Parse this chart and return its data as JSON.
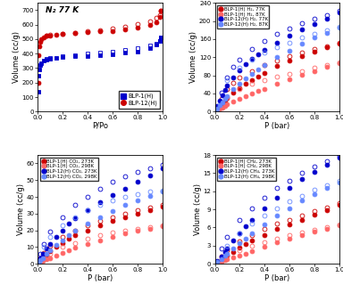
{
  "subplot1": {
    "title": "N₂ 77 K",
    "xlabel": "P/Po",
    "ylabel": "Volume (cc/g)",
    "ylim": [
      0,
      750
    ],
    "yticks": [
      0,
      100,
      200,
      300,
      400,
      500,
      600,
      700
    ],
    "xlim": [
      0,
      1.0
    ],
    "legend": [
      "BLP-1(H)",
      "BLP-12(H)"
    ],
    "blp1_ads_x": [
      0.003,
      0.007,
      0.01,
      0.02,
      0.03,
      0.05,
      0.07,
      0.1,
      0.15,
      0.2,
      0.3,
      0.4,
      0.5,
      0.6,
      0.7,
      0.8,
      0.9,
      0.95,
      0.98,
      0.99
    ],
    "blp1_ads_y": [
      135,
      250,
      290,
      320,
      335,
      350,
      360,
      365,
      370,
      375,
      380,
      385,
      390,
      395,
      405,
      415,
      440,
      460,
      490,
      510
    ],
    "blp1_des_x": [
      0.99,
      0.98,
      0.95,
      0.9,
      0.8,
      0.7,
      0.6,
      0.5,
      0.4,
      0.3,
      0.2,
      0.1,
      0.07
    ],
    "blp1_des_y": [
      510,
      490,
      470,
      455,
      440,
      425,
      415,
      408,
      402,
      392,
      383,
      373,
      365
    ],
    "blp12_ads_x": [
      0.003,
      0.007,
      0.01,
      0.02,
      0.03,
      0.05,
      0.07,
      0.1,
      0.15,
      0.2,
      0.3,
      0.4,
      0.5,
      0.6,
      0.7,
      0.8,
      0.9,
      0.95,
      0.98,
      0.99
    ],
    "blp12_ads_y": [
      200,
      390,
      450,
      480,
      500,
      515,
      522,
      527,
      532,
      537,
      542,
      547,
      552,
      558,
      568,
      580,
      598,
      618,
      655,
      695
    ],
    "blp12_des_x": [
      0.99,
      0.98,
      0.95,
      0.9,
      0.8,
      0.7,
      0.6,
      0.5,
      0.4,
      0.3,
      0.2,
      0.1,
      0.07
    ],
    "blp12_des_y": [
      695,
      668,
      645,
      625,
      605,
      588,
      572,
      562,
      552,
      542,
      536,
      530,
      526
    ]
  },
  "subplot2": {
    "xlabel": "P (bar)",
    "ylabel": "Volume (cc/g)",
    "ylim": [
      0,
      240
    ],
    "yticks": [
      0,
      40,
      80,
      120,
      160,
      200,
      240
    ],
    "xlim": [
      0,
      1.0
    ],
    "legend": [
      "BLP-1(H) H₂, 77K",
      "BLP-1(H) H₂, 87K",
      "BLP-12(H) H₂, 77K",
      "BLP-12(H) H₂, 87K"
    ],
    "blp1_77_ads_x": [
      0.01,
      0.02,
      0.04,
      0.06,
      0.08,
      0.1,
      0.15,
      0.2,
      0.25,
      0.3,
      0.35,
      0.4,
      0.5,
      0.6,
      0.7,
      0.8,
      0.9,
      1.0
    ],
    "blp1_77_ads_y": [
      3,
      6,
      12,
      18,
      24,
      30,
      42,
      52,
      62,
      70,
      78,
      86,
      100,
      112,
      123,
      133,
      142,
      150
    ],
    "blp1_77_des_x": [
      1.0,
      0.9,
      0.8,
      0.7,
      0.6,
      0.5,
      0.4,
      0.3,
      0.2,
      0.15,
      0.1,
      0.05
    ],
    "blp1_77_des_y": [
      152,
      145,
      138,
      130,
      122,
      113,
      103,
      90,
      75,
      64,
      50,
      28
    ],
    "blp1_87_ads_x": [
      0.01,
      0.02,
      0.04,
      0.06,
      0.08,
      0.1,
      0.15,
      0.2,
      0.25,
      0.3,
      0.35,
      0.4,
      0.5,
      0.6,
      0.7,
      0.8,
      0.9,
      1.0
    ],
    "blp1_87_ads_y": [
      1,
      3,
      6,
      9,
      12,
      16,
      22,
      28,
      34,
      40,
      45,
      50,
      62,
      72,
      82,
      90,
      98,
      106
    ],
    "blp1_87_des_x": [
      1.0,
      0.9,
      0.8,
      0.7,
      0.6,
      0.5,
      0.4,
      0.3,
      0.2,
      0.1
    ],
    "blp1_87_des_y": [
      108,
      102,
      96,
      90,
      84,
      77,
      70,
      61,
      50,
      33
    ],
    "blp12_77_ads_x": [
      0.01,
      0.02,
      0.04,
      0.06,
      0.08,
      0.1,
      0.15,
      0.2,
      0.25,
      0.3,
      0.35,
      0.4,
      0.5,
      0.6,
      0.7,
      0.8,
      0.9,
      1.0
    ],
    "blp12_77_ads_y": [
      5,
      12,
      24,
      36,
      48,
      58,
      76,
      92,
      105,
      116,
      126,
      136,
      152,
      168,
      182,
      194,
      206,
      218
    ],
    "blp12_77_des_x": [
      1.0,
      0.9,
      0.8,
      0.7,
      0.6,
      0.5,
      0.4,
      0.3,
      0.2,
      0.15,
      0.1,
      0.05
    ],
    "blp12_77_des_y": [
      222,
      214,
      206,
      196,
      184,
      171,
      156,
      138,
      114,
      98,
      76,
      42
    ],
    "blp12_87_ads_x": [
      0.01,
      0.02,
      0.04,
      0.06,
      0.08,
      0.1,
      0.15,
      0.2,
      0.25,
      0.3,
      0.35,
      0.4,
      0.5,
      0.6,
      0.7,
      0.8,
      0.9,
      1.0
    ],
    "blp12_87_ads_y": [
      3,
      7,
      14,
      21,
      28,
      35,
      50,
      62,
      74,
      84,
      94,
      102,
      120,
      135,
      150,
      163,
      174,
      185
    ],
    "blp12_87_des_x": [
      1.0,
      0.9,
      0.8,
      0.7,
      0.6,
      0.5,
      0.4,
      0.3,
      0.2,
      0.1
    ],
    "blp12_87_des_y": [
      188,
      180,
      172,
      163,
      153,
      142,
      130,
      115,
      96,
      70
    ]
  },
  "subplot3": {
    "xlabel": "P (bar)",
    "ylabel": "Volume (cc/g)",
    "ylim": [
      0,
      65
    ],
    "yticks": [
      0,
      10,
      20,
      30,
      40,
      50,
      60
    ],
    "xlim": [
      0,
      1.0
    ],
    "legend": [
      "BLP-1(H) CO₂, 273K",
      "BLP-1(H) CO₂, 298K",
      "BLP-12(H) CO₂, 273K",
      "BLP-12(H) CO₂, 298K"
    ],
    "blp1_273_ads_x": [
      0.01,
      0.02,
      0.04,
      0.07,
      0.1,
      0.15,
      0.2,
      0.25,
      0.3,
      0.4,
      0.5,
      0.6,
      0.7,
      0.8,
      0.9,
      1.0
    ],
    "blp1_273_ads_y": [
      1,
      2,
      3.5,
      5.5,
      7.5,
      10,
      12.5,
      15,
      17,
      20,
      23,
      25.5,
      28,
      30,
      32,
      34
    ],
    "blp1_273_des_x": [
      1.0,
      0.9,
      0.8,
      0.7,
      0.6,
      0.5,
      0.4,
      0.3,
      0.2,
      0.1,
      0.05,
      0.02
    ],
    "blp1_273_des_y": [
      35,
      33.5,
      32,
      30,
      28,
      25.5,
      23,
      20,
      16,
      10.5,
      6.5,
      3
    ],
    "blp1_298_ads_x": [
      0.01,
      0.02,
      0.04,
      0.07,
      0.1,
      0.15,
      0.2,
      0.25,
      0.3,
      0.4,
      0.5,
      0.6,
      0.7,
      0.8,
      0.9,
      1.0
    ],
    "blp1_298_ads_y": [
      0.3,
      0.8,
      1.5,
      2.5,
      3.5,
      5,
      6.5,
      8,
      9.5,
      12,
      14,
      16,
      18,
      19.5,
      21,
      22.5
    ],
    "blp1_298_des_x": [
      1.0,
      0.9,
      0.8,
      0.7,
      0.6,
      0.5,
      0.4,
      0.3,
      0.2,
      0.1,
      0.05
    ],
    "blp1_298_des_y": [
      23,
      22,
      21,
      20,
      18.5,
      17,
      15,
      12.5,
      10,
      6,
      3.5
    ],
    "blp12_273_ads_x": [
      0.01,
      0.02,
      0.04,
      0.07,
      0.1,
      0.15,
      0.2,
      0.25,
      0.3,
      0.4,
      0.5,
      0.6,
      0.7,
      0.8,
      0.9,
      1.0
    ],
    "blp12_273_ads_y": [
      2,
      3.5,
      6,
      9,
      12,
      16,
      20,
      24,
      27,
      32,
      37,
      41,
      45,
      49,
      53,
      57
    ],
    "blp12_273_des_x": [
      1.0,
      0.9,
      0.8,
      0.7,
      0.6,
      0.5,
      0.4,
      0.3,
      0.2,
      0.1,
      0.05,
      0.02
    ],
    "blp12_273_des_y": [
      59,
      57,
      55,
      52.5,
      49,
      45,
      40,
      35,
      28,
      19,
      12,
      6
    ],
    "blp12_298_ads_x": [
      0.01,
      0.02,
      0.04,
      0.07,
      0.1,
      0.15,
      0.2,
      0.25,
      0.3,
      0.4,
      0.5,
      0.6,
      0.7,
      0.8,
      0.9,
      1.0
    ],
    "blp12_298_ads_y": [
      1,
      2,
      3.5,
      6,
      8,
      11,
      14,
      17,
      19.5,
      24,
      28,
      31.5,
      35,
      38,
      40.5,
      43
    ],
    "blp12_298_des_x": [
      1.0,
      0.9,
      0.8,
      0.7,
      0.6,
      0.5,
      0.4,
      0.3,
      0.2,
      0.1,
      0.05
    ],
    "blp12_298_des_y": [
      44,
      43,
      41.5,
      40,
      38,
      35,
      32,
      28,
      23,
      16,
      10
    ]
  },
  "subplot4": {
    "xlabel": "P (bar)",
    "ylabel": "Volume (cc/g)",
    "ylim": [
      0,
      18
    ],
    "yticks": [
      0,
      3,
      6,
      9,
      12,
      15,
      18
    ],
    "xlim": [
      0,
      1.0
    ],
    "legend": [
      "BLP-1(H) CH₄, 273K",
      "BLP-1(H) CH₄, 298K",
      "BLP-12(H) CH₄, 273K",
      "BLP-12(H) CH₄, 298K"
    ],
    "blp1_273_ads_x": [
      0.01,
      0.02,
      0.05,
      0.08,
      0.1,
      0.15,
      0.2,
      0.25,
      0.3,
      0.4,
      0.5,
      0.6,
      0.7,
      0.8,
      0.9,
      1.0
    ],
    "blp1_273_ads_y": [
      0.1,
      0.3,
      0.7,
      1.1,
      1.4,
      2.0,
      2.6,
      3.2,
      3.8,
      4.8,
      5.7,
      6.5,
      7.3,
      8.1,
      8.9,
      9.8
    ],
    "blp1_273_des_x": [
      1.0,
      0.9,
      0.8,
      0.7,
      0.6,
      0.5,
      0.4,
      0.3,
      0.2,
      0.1,
      0.05
    ],
    "blp1_273_des_y": [
      10.0,
      9.3,
      8.7,
      8.0,
      7.3,
      6.6,
      5.8,
      4.8,
      3.7,
      2.3,
      1.2
    ],
    "blp1_298_ads_x": [
      0.01,
      0.02,
      0.05,
      0.08,
      0.1,
      0.15,
      0.2,
      0.25,
      0.3,
      0.4,
      0.5,
      0.6,
      0.7,
      0.8,
      0.9,
      1.0
    ],
    "blp1_298_ads_y": [
      0.05,
      0.15,
      0.35,
      0.55,
      0.7,
      1.0,
      1.4,
      1.7,
      2.1,
      2.8,
      3.5,
      4.1,
      4.7,
      5.3,
      5.8,
      6.4
    ],
    "blp1_298_des_x": [
      1.0,
      0.9,
      0.8,
      0.7,
      0.6,
      0.5,
      0.4,
      0.3,
      0.2,
      0.1
    ],
    "blp1_298_des_y": [
      6.5,
      6.0,
      5.6,
      5.2,
      4.7,
      4.2,
      3.6,
      3.0,
      2.2,
      1.3
    ],
    "blp12_273_ads_x": [
      0.01,
      0.02,
      0.05,
      0.08,
      0.1,
      0.15,
      0.2,
      0.25,
      0.3,
      0.4,
      0.5,
      0.6,
      0.7,
      0.8,
      0.9,
      1.0
    ],
    "blp12_273_ads_y": [
      0.2,
      0.5,
      1.2,
      2.0,
      2.5,
      3.8,
      5.0,
      6.2,
      7.2,
      9.2,
      11.0,
      12.5,
      14.0,
      15.2,
      16.4,
      17.5
    ],
    "blp12_273_des_x": [
      1.0,
      0.9,
      0.8,
      0.7,
      0.6,
      0.5,
      0.4,
      0.3,
      0.2,
      0.1,
      0.05
    ],
    "blp12_273_des_y": [
      17.8,
      17.0,
      16.1,
      15.0,
      13.8,
      12.5,
      11.0,
      9.2,
      7.2,
      4.5,
      2.5
    ],
    "blp12_298_ads_x": [
      0.01,
      0.02,
      0.05,
      0.08,
      0.1,
      0.15,
      0.2,
      0.25,
      0.3,
      0.4,
      0.5,
      0.6,
      0.7,
      0.8,
      0.9,
      1.0
    ],
    "blp12_298_ads_y": [
      0.1,
      0.3,
      0.8,
      1.3,
      1.7,
      2.5,
      3.4,
      4.2,
      5.0,
      6.5,
      8.0,
      9.2,
      10.5,
      11.5,
      12.5,
      13.5
    ],
    "blp12_298_des_x": [
      1.0,
      0.9,
      0.8,
      0.7,
      0.6,
      0.5,
      0.4,
      0.3,
      0.2,
      0.1
    ],
    "blp12_298_des_y": [
      13.8,
      13.0,
      12.2,
      11.3,
      10.3,
      9.2,
      8.0,
      6.6,
      5.0,
      3.0
    ]
  },
  "colors_warm_dark": "#CC0000",
  "colors_warm_light": "#FF6666",
  "colors_cool_dark": "#0000CC",
  "colors_cool_light": "#6688FF"
}
